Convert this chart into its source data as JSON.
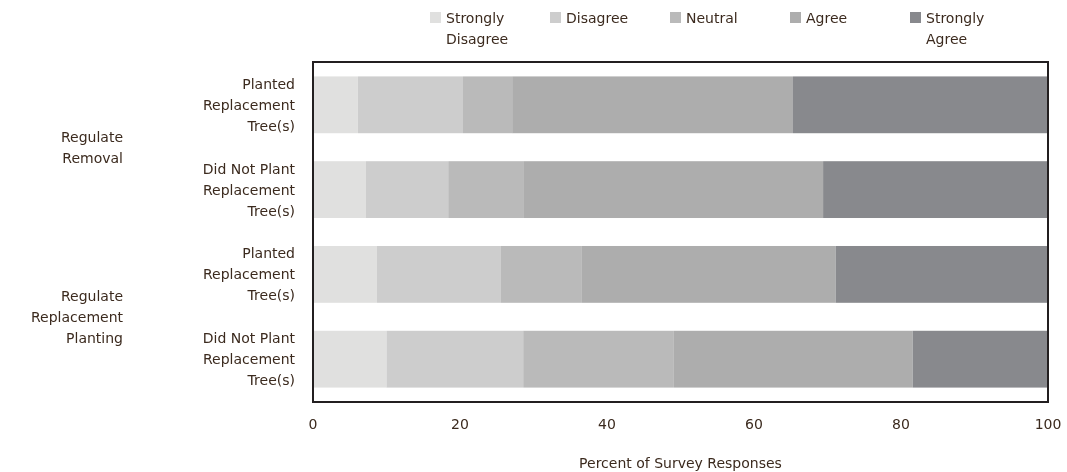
{
  "chart_data": {
    "type": "bar",
    "orientation": "horizontal",
    "stacked": true,
    "categories": [
      "Planted Replacement Tree(s)",
      "Did Not Plant Replacement Tree(s)",
      "Planted Replacement Tree(s)",
      "Did Not Plant Replacement Tree(s)"
    ],
    "series": [
      {
        "name": "Strongly Disagree",
        "color": "#e0e0df",
        "values": [
          6.1,
          7.2,
          8.7,
          10.0
        ]
      },
      {
        "name": "Disagree",
        "color": "#cdcdcd",
        "values": [
          14.3,
          11.2,
          16.8,
          18.6
        ]
      },
      {
        "name": "Neutral",
        "color": "#bababa",
        "values": [
          6.7,
          10.2,
          11.0,
          20.5
        ]
      },
      {
        "name": "Agree",
        "color": "#adadad",
        "values": [
          38.2,
          40.8,
          34.6,
          32.5
        ]
      },
      {
        "name": "Strongly Agree",
        "color": "#88898d",
        "values": [
          34.7,
          30.6,
          28.9,
          18.4
        ]
      }
    ],
    "xlim": [
      0,
      100
    ],
    "xticks": [
      0,
      20,
      40,
      60,
      80,
      100
    ],
    "xlabel": "Percent of Survey Responses",
    "annotations": [
      "Regulate Removal",
      "Regulate Replacement Planting"
    ],
    "legend": "top",
    "grid": false
  }
}
